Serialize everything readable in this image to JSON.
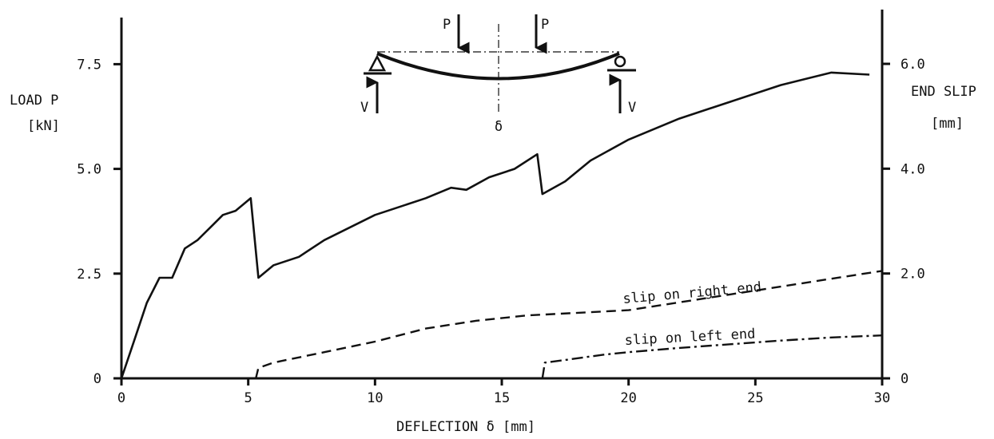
{
  "chart_data": {
    "type": "line",
    "title": "",
    "xlabel": "DEFLECTION δ [mm]",
    "ylabel_left": [
      "LOAD P",
      "[kN]"
    ],
    "ylabel_right": [
      "END SLIP",
      "[mm]"
    ],
    "xlim": [
      0,
      30
    ],
    "ylim_left": [
      0,
      8.5
    ],
    "ylim_right": [
      0,
      6.8
    ],
    "x_ticks": [
      0,
      5,
      10,
      15,
      20,
      25,
      30
    ],
    "x_tick_labels": [
      "0",
      "5",
      "10",
      "15",
      "20",
      "25",
      "30"
    ],
    "y_left_ticks": [
      0,
      2.5,
      5.0,
      7.5
    ],
    "y_left_tick_labels": [
      "0",
      "2.5",
      "5.0",
      "7.5"
    ],
    "y_right_ticks": [
      0,
      2.0,
      4.0,
      6.0
    ],
    "y_right_tick_labels": [
      "0",
      "2.0",
      "4.0",
      "6.0"
    ],
    "grid": false,
    "legend": "none",
    "series": [
      {
        "axis": "left",
        "style": "solid",
        "color": "#111111",
        "x": [
          0,
          0.5,
          1,
          1.5,
          2,
          2.5,
          3,
          3.5,
          4,
          4.5,
          5.1,
          5.4,
          6,
          7,
          8,
          9,
          10,
          11,
          12,
          13,
          13.6,
          14.5,
          15.5,
          16.4,
          16.6,
          17.5,
          18.5,
          20,
          22,
          24,
          26,
          28,
          29.5
        ],
        "y": [
          0,
          0.9,
          1.8,
          2.4,
          2.4,
          3.1,
          3.3,
          3.6,
          3.9,
          4.0,
          4.3,
          2.4,
          2.7,
          2.9,
          3.3,
          3.6,
          3.9,
          4.1,
          4.3,
          4.55,
          4.5,
          4.8,
          5.0,
          5.35,
          4.4,
          4.7,
          5.2,
          5.7,
          6.2,
          6.6,
          7.0,
          7.3,
          7.25
        ]
      },
      {
        "name": "slip on right end",
        "axis": "right",
        "style": "dashed",
        "color": "#111111",
        "x": [
          5.3,
          5.4,
          6,
          8,
          10,
          12,
          14,
          16,
          18,
          20,
          22,
          24,
          26,
          28,
          30
        ],
        "y": [
          0,
          0.2,
          0.3,
          0.5,
          0.7,
          0.95,
          1.1,
          1.2,
          1.25,
          1.3,
          1.45,
          1.6,
          1.75,
          1.9,
          2.05
        ]
      },
      {
        "name": "slip on left end",
        "axis": "right",
        "style": "dashdot",
        "color": "#111111",
        "x": [
          16.6,
          16.7,
          17.5,
          19,
          20,
          22,
          24,
          26,
          28,
          30
        ],
        "y": [
          0,
          0.3,
          0.35,
          0.45,
          0.5,
          0.58,
          0.65,
          0.72,
          0.78,
          0.82
        ]
      }
    ],
    "annotations": [
      "slip on right end",
      "slip on left end"
    ],
    "inset": {
      "load_labels": [
        "P",
        "P"
      ],
      "reaction_labels": [
        "V",
        "V"
      ],
      "deflection_label": "δ"
    }
  }
}
